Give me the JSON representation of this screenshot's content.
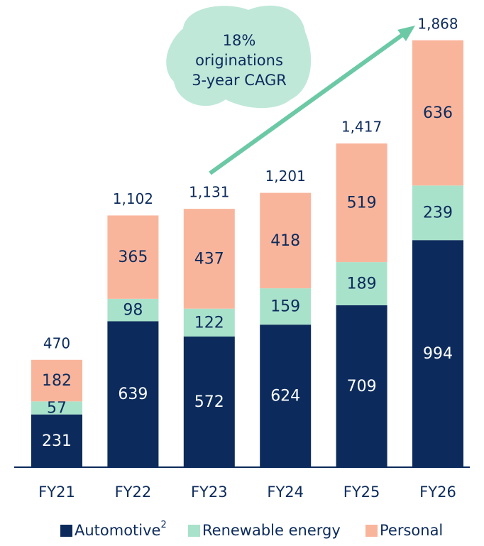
{
  "chart_data": {
    "type": "stacked_bar",
    "categories": [
      "FY21",
      "FY22",
      "FY23",
      "FY24",
      "FY25",
      "FY26"
    ],
    "series": [
      {
        "name": "Automotive",
        "name_superscript": "2",
        "color": "#0c2b5c",
        "label_color": "#ffffff",
        "values": [
          231,
          639,
          572,
          624,
          709,
          994
        ]
      },
      {
        "name": "Renewable energy",
        "color": "#a9e2cb",
        "label_color": "#0c2b5c",
        "values": [
          57,
          98,
          122,
          159,
          189,
          239
        ]
      },
      {
        "name": "Personal",
        "color": "#f9b59c",
        "label_color": "#0c2b5c",
        "values": [
          182,
          365,
          437,
          418,
          519,
          636
        ]
      }
    ],
    "totals": {
      "values": [
        470,
        1102,
        1131,
        1201,
        1417,
        1868
      ],
      "value_labels": [
        "470",
        "1,102",
        "1,131",
        "1,201",
        "1,417",
        "1,868"
      ]
    },
    "annotation": [
      "18%",
      "originations",
      "3-year CAGR"
    ],
    "annotation_color": "#bfe8d9",
    "arrow_color": "#6cc9a6"
  }
}
